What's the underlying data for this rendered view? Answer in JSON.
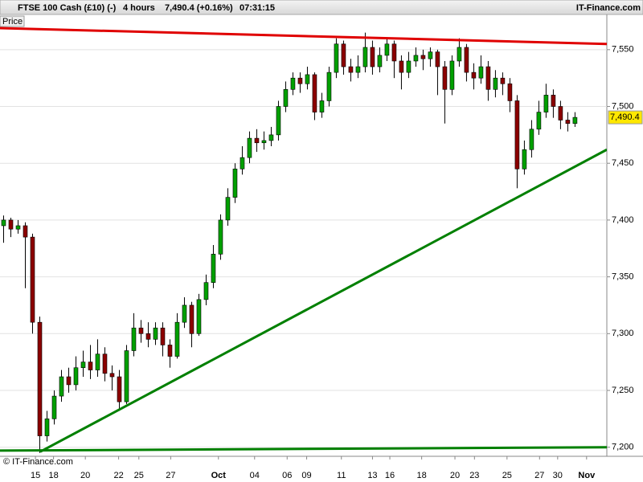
{
  "chart_data": {
    "type": "candlestick",
    "title": "FTSE 100 Cash (£10) (-)",
    "interval": "4 hours",
    "quote": "7,490.4 (+0.16%)",
    "time": "07:31:15",
    "brand": "IT-Finance.com",
    "panel_label": "Price",
    "copyright": "© IT-Finance.com",
    "up_color": "#00a000",
    "down_color": "#8b0000",
    "x": [
      0,
      1,
      2,
      3,
      4,
      5,
      6,
      7,
      8,
      9,
      10,
      11,
      12,
      13,
      14,
      15,
      16,
      17,
      18,
      19,
      20,
      21,
      22,
      23,
      24,
      25,
      26,
      27,
      28,
      29,
      30,
      31,
      32,
      33,
      34,
      35,
      36,
      37,
      38,
      39,
      40,
      41,
      42,
      43,
      44,
      45,
      46,
      47,
      48,
      49,
      50,
      51,
      52,
      53,
      54,
      55,
      56,
      57,
      58,
      59,
      60,
      61,
      62,
      63,
      64,
      65,
      66,
      67,
      68,
      69,
      70,
      71,
      72,
      73,
      74,
      75,
      76,
      77,
      78,
      79
    ],
    "open": [
      7395,
      7400,
      7392,
      7395,
      7385,
      7310,
      7210,
      7225,
      7245,
      7262,
      7255,
      7270,
      7275,
      7268,
      7282,
      7265,
      7262,
      7240,
      7285,
      7305,
      7300,
      7295,
      7305,
      7290,
      7280,
      7310,
      7325,
      7300,
      7330,
      7345,
      7370,
      7400,
      7420,
      7445,
      7455,
      7472,
      7468,
      7470,
      7475,
      7500,
      7515,
      7525,
      7520,
      7528,
      7495,
      7505,
      7530,
      7555,
      7535,
      7530,
      7535,
      7552,
      7535,
      7545,
      7555,
      7540,
      7530,
      7540,
      7545,
      7542,
      7548,
      7535,
      7515,
      7540,
      7552,
      7530,
      7525,
      7535,
      7515,
      7525,
      7520,
      7505,
      7445,
      7462,
      7480,
      7495,
      7510,
      7500,
      7488,
      7485
    ],
    "high": [
      7404,
      7402,
      7400,
      7398,
      7388,
      7315,
      7232,
      7250,
      7268,
      7270,
      7280,
      7285,
      7290,
      7295,
      7288,
      7272,
      7268,
      7290,
      7318,
      7312,
      7310,
      7310,
      7310,
      7295,
      7318,
      7332,
      7328,
      7335,
      7352,
      7378,
      7405,
      7428,
      7450,
      7465,
      7478,
      7480,
      7478,
      7482,
      7505,
      7522,
      7530,
      7530,
      7535,
      7530,
      7512,
      7535,
      7560,
      7558,
      7542,
      7545,
      7565,
      7558,
      7552,
      7560,
      7558,
      7545,
      7548,
      7552,
      7550,
      7552,
      7550,
      7540,
      7545,
      7560,
      7555,
      7538,
      7545,
      7540,
      7532,
      7530,
      7525,
      7510,
      7470,
      7488,
      7505,
      7520,
      7515,
      7505,
      7495,
      7495
    ],
    "low": [
      7380,
      7385,
      7388,
      7340,
      7300,
      7195,
      7205,
      7220,
      7240,
      7248,
      7250,
      7262,
      7260,
      7262,
      7258,
      7250,
      7232,
      7238,
      7280,
      7292,
      7288,
      7290,
      7280,
      7270,
      7278,
      7305,
      7288,
      7298,
      7325,
      7340,
      7365,
      7395,
      7415,
      7440,
      7450,
      7460,
      7462,
      7465,
      7470,
      7495,
      7510,
      7512,
      7515,
      7488,
      7490,
      7500,
      7525,
      7528,
      7522,
      7525,
      7530,
      7528,
      7530,
      7540,
      7525,
      7515,
      7525,
      7535,
      7532,
      7535,
      7510,
      7485,
      7510,
      7535,
      7522,
      7515,
      7520,
      7505,
      7508,
      7510,
      7495,
      7428,
      7440,
      7455,
      7475,
      7490,
      7490,
      7480,
      7478,
      7482
    ],
    "close": [
      7400,
      7392,
      7395,
      7385,
      7310,
      7210,
      7225,
      7245,
      7262,
      7255,
      7270,
      7275,
      7268,
      7282,
      7265,
      7262,
      7240,
      7285,
      7305,
      7300,
      7295,
      7305,
      7290,
      7280,
      7310,
      7325,
      7300,
      7330,
      7345,
      7370,
      7400,
      7420,
      7445,
      7455,
      7472,
      7468,
      7470,
      7475,
      7500,
      7515,
      7525,
      7520,
      7528,
      7495,
      7505,
      7530,
      7555,
      7535,
      7530,
      7535,
      7552,
      7535,
      7545,
      7555,
      7540,
      7530,
      7540,
      7545,
      7542,
      7548,
      7535,
      7515,
      7540,
      7552,
      7530,
      7525,
      7535,
      7515,
      7525,
      7520,
      7505,
      7445,
      7462,
      7480,
      7495,
      7510,
      7500,
      7488,
      7485,
      7490.4
    ],
    "last_price": {
      "value": 7490.4,
      "label": "7,490.4"
    },
    "xlim": [
      -0.5,
      83.4
    ],
    "ylim": [
      7192,
      7581
    ],
    "yticks": [
      {
        "value": 7200,
        "label": "7,200"
      },
      {
        "value": 7250,
        "label": "7,250"
      },
      {
        "value": 7300,
        "label": "7,300"
      },
      {
        "value": 7350,
        "label": "7,350"
      },
      {
        "value": 7400,
        "label": "7,400"
      },
      {
        "value": 7450,
        "label": "7,450"
      },
      {
        "value": 7500,
        "label": "7,500"
      },
      {
        "value": 7550,
        "label": "7,550"
      }
    ],
    "xticks": [
      {
        "value": 4.4,
        "label": "15"
      },
      {
        "value": 6.9,
        "label": "18"
      },
      {
        "value": 11.3,
        "label": "20"
      },
      {
        "value": 15.9,
        "label": "22"
      },
      {
        "value": 18.7,
        "label": "25"
      },
      {
        "value": 23.1,
        "label": "27"
      },
      {
        "value": 29.7,
        "label": "Oct"
      },
      {
        "value": 34.7,
        "label": "04"
      },
      {
        "value": 39.2,
        "label": "06"
      },
      {
        "value": 41.9,
        "label": "09"
      },
      {
        "value": 46.7,
        "label": "11"
      },
      {
        "value": 51,
        "label": "13"
      },
      {
        "value": 53.4,
        "label": "16"
      },
      {
        "value": 57.8,
        "label": "18"
      },
      {
        "value": 62.4,
        "label": "20"
      },
      {
        "value": 65.1,
        "label": "23"
      },
      {
        "value": 69.6,
        "label": "25"
      },
      {
        "value": 74.1,
        "label": "27"
      },
      {
        "value": 76.6,
        "label": "30"
      },
      {
        "value": 80.6,
        "label": "Nov"
      }
    ],
    "grid": true,
    "trendlines": [
      {
        "color": "#e00000",
        "x": [
          -0.5,
          83.4
        ],
        "y": [
          7569,
          7555
        ]
      },
      {
        "color": "#008000",
        "x": [
          5.06,
          83.4
        ],
        "y": [
          7196,
          7462
        ]
      },
      {
        "color": "#008000",
        "x": [
          -0.5,
          83.4
        ],
        "y": [
          7197,
          7200
        ]
      }
    ]
  }
}
